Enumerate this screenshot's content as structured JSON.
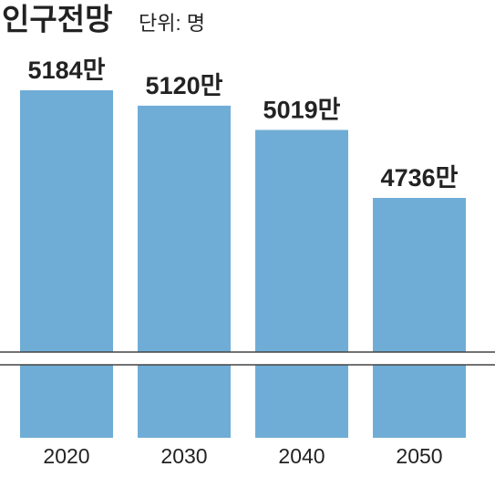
{
  "chart_data": {
    "type": "bar",
    "title": "인구전망",
    "subtitle": "단위: 명",
    "categories": [
      "2020",
      "2030",
      "2040",
      "2050"
    ],
    "values": [
      5184,
      5120,
      5019,
      4736
    ],
    "value_labels": [
      "5184만",
      "5120만",
      "5019만",
      "4736만"
    ],
    "color": "#70add6"
  }
}
